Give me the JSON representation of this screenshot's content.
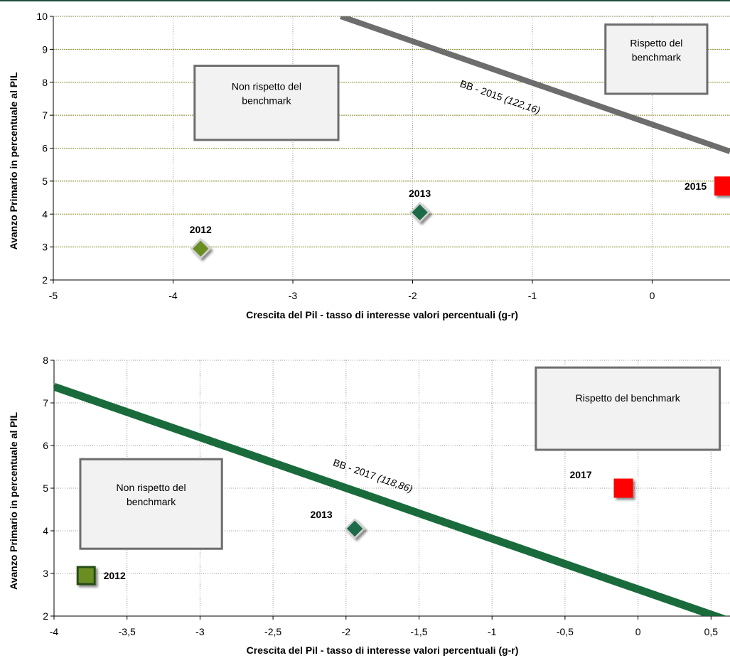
{
  "chart_data": [
    {
      "type": "scatter",
      "title": "",
      "xlabel": "Crescita del Pil - tasso di interesse valori percentuali (g-r)",
      "ylabel": "Avanzo Primario in percentuale  al PIL",
      "xlim": [
        -5,
        0.65
      ],
      "ylim": [
        2,
        10
      ],
      "xticks": [
        -5,
        -4,
        -3,
        -2,
        -1,
        0
      ],
      "xtick_labels": [
        "-5",
        "-4",
        "-3",
        "-2",
        "-1",
        "0"
      ],
      "yticks": [
        2,
        3,
        4,
        5,
        6,
        7,
        8,
        9,
        10
      ],
      "ytick_labels": [
        "2",
        "3",
        "4",
        "5",
        "6",
        "7",
        "8",
        "9",
        "10"
      ],
      "grid": true,
      "points": [
        {
          "label": "2012",
          "x": -3.77,
          "y": 2.95,
          "marker": "diamond",
          "color": "#6b8e23"
        },
        {
          "label": "2013",
          "x": -1.94,
          "y": 4.05,
          "marker": "diamond",
          "color": "#1e6b47"
        },
        {
          "label": "2015",
          "x": 0.6,
          "y": 4.85,
          "marker": "square",
          "color": "#ff0000"
        }
      ],
      "line": {
        "label": "BB - 2015 (122,16)",
        "x1": -2.6,
        "y1": 10,
        "x2": 0.65,
        "y2": 5.9,
        "color": "#6d6d6d"
      },
      "boxes": [
        {
          "text": [
            "Non rispetto  del",
            "benchmark"
          ],
          "x0": -3.82,
          "x1": -2.62,
          "y0": 6.25,
          "y1": 8.5
        },
        {
          "text": [
            "Rispetto del",
            "benchmark"
          ],
          "x0": -0.39,
          "x1": 0.46,
          "y0": 7.65,
          "y1": 9.75
        }
      ]
    },
    {
      "type": "scatter",
      "title": "",
      "xlabel": "Crescita del Pil - tasso di interesse valori percentuali (g-r)",
      "ylabel": "Avanzo Primario in percentuale  al PIL",
      "xlim": [
        -4,
        0.63
      ],
      "ylim": [
        2,
        8
      ],
      "xticks": [
        -4,
        -3.5,
        -3,
        -2.5,
        -2,
        -1.5,
        -1,
        -0.5,
        0,
        0.5
      ],
      "xtick_labels": [
        "-4",
        "-3,5",
        "-3",
        "-2,5",
        "-2",
        "-1,5",
        "-1",
        "-0,5",
        "0",
        "0,5"
      ],
      "yticks": [
        2,
        3,
        4,
        5,
        6,
        7,
        8
      ],
      "ytick_labels": [
        "2",
        "3",
        "4",
        "5",
        "6",
        "7",
        "8"
      ],
      "grid": true,
      "points": [
        {
          "label": "2012",
          "x": -3.78,
          "y": 2.95,
          "marker": "square",
          "color": "#6b8e23"
        },
        {
          "label": "2013",
          "x": -1.94,
          "y": 4.05,
          "marker": "diamond",
          "color": "#1e6b47"
        },
        {
          "label": "2017",
          "x": -0.1,
          "y": 5.0,
          "marker": "square",
          "color": "#ff0000"
        }
      ],
      "line": {
        "label": "BB - 2017 (118,86)",
        "x1": -4,
        "y1": 7.38,
        "x2": 0.63,
        "y2": 1.88,
        "color": "#1a6b3c"
      },
      "boxes": [
        {
          "text": [
            "Non rispetto  del",
            "benchmark"
          ],
          "x0": -3.82,
          "x1": -2.85,
          "y0": 3.58,
          "y1": 5.68
        },
        {
          "text": [
            "Rispetto del benchmark"
          ],
          "x0": -0.7,
          "x1": 0.56,
          "y0": 5.9,
          "y1": 7.83
        }
      ]
    }
  ]
}
